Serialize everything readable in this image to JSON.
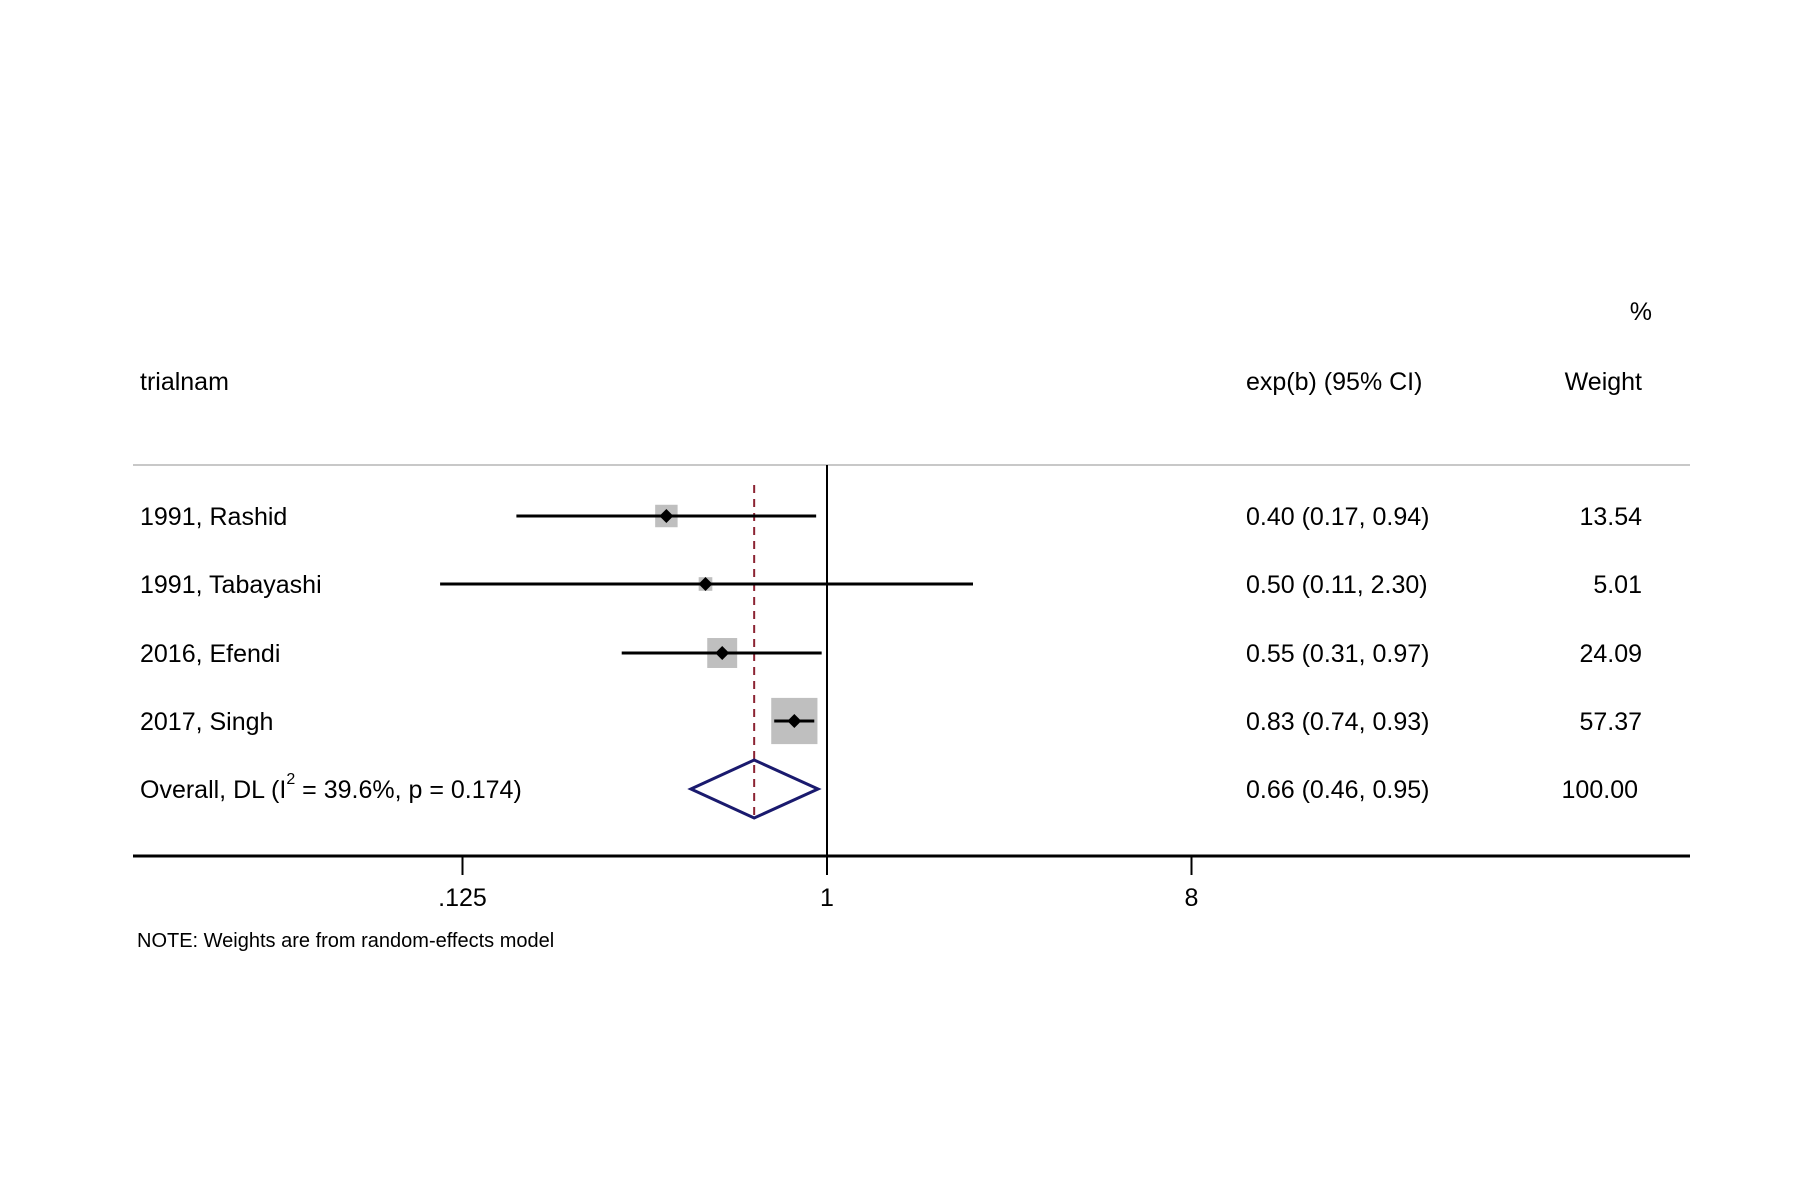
{
  "chart_data": {
    "type": "forest",
    "scale": "log",
    "xticks": [
      0.125,
      1,
      8
    ],
    "xtick_labels": [
      ".125",
      "1",
      "8"
    ],
    "null_line": 1,
    "headers": {
      "study": "trialnam",
      "effect": "exp(b) (95% CI)",
      "weight_top": "%",
      "weight": "Weight"
    },
    "studies": [
      {
        "label": "1991, Rashid",
        "est": 0.4,
        "lo": 0.17,
        "hi": 0.94,
        "ci_text": "0.40 (0.17, 0.94)",
        "weight": 13.54,
        "weight_text": "13.54"
      },
      {
        "label": "1991, Tabayashi",
        "est": 0.5,
        "lo": 0.11,
        "hi": 2.3,
        "ci_text": "0.50 (0.11, 2.30)",
        "weight": 5.01,
        "weight_text": "5.01"
      },
      {
        "label": "2016, Efendi",
        "est": 0.55,
        "lo": 0.31,
        "hi": 0.97,
        "ci_text": "0.55 (0.31, 0.97)",
        "weight": 24.09,
        "weight_text": "24.09"
      },
      {
        "label": "2017, Singh",
        "est": 0.83,
        "lo": 0.74,
        "hi": 0.93,
        "ci_text": "0.83 (0.74, 0.93)",
        "weight": 57.37,
        "weight_text": "57.37"
      }
    ],
    "overall": {
      "label_pre": "Overall, DL (I",
      "label_sup": "2",
      "label_post": " = 39.6%, p = 0.174)",
      "est": 0.66,
      "lo": 0.46,
      "hi": 0.95,
      "ci_text": "0.66 (0.46, 0.95)",
      "weight_text": "100.00"
    },
    "note": "NOTE: Weights are from random-effects model",
    "colors": {
      "box": "#bfbfbf",
      "diamond": "#1a1a6e",
      "overall_line": "#8b2332",
      "header_rule": "#c8c8c8"
    }
  }
}
